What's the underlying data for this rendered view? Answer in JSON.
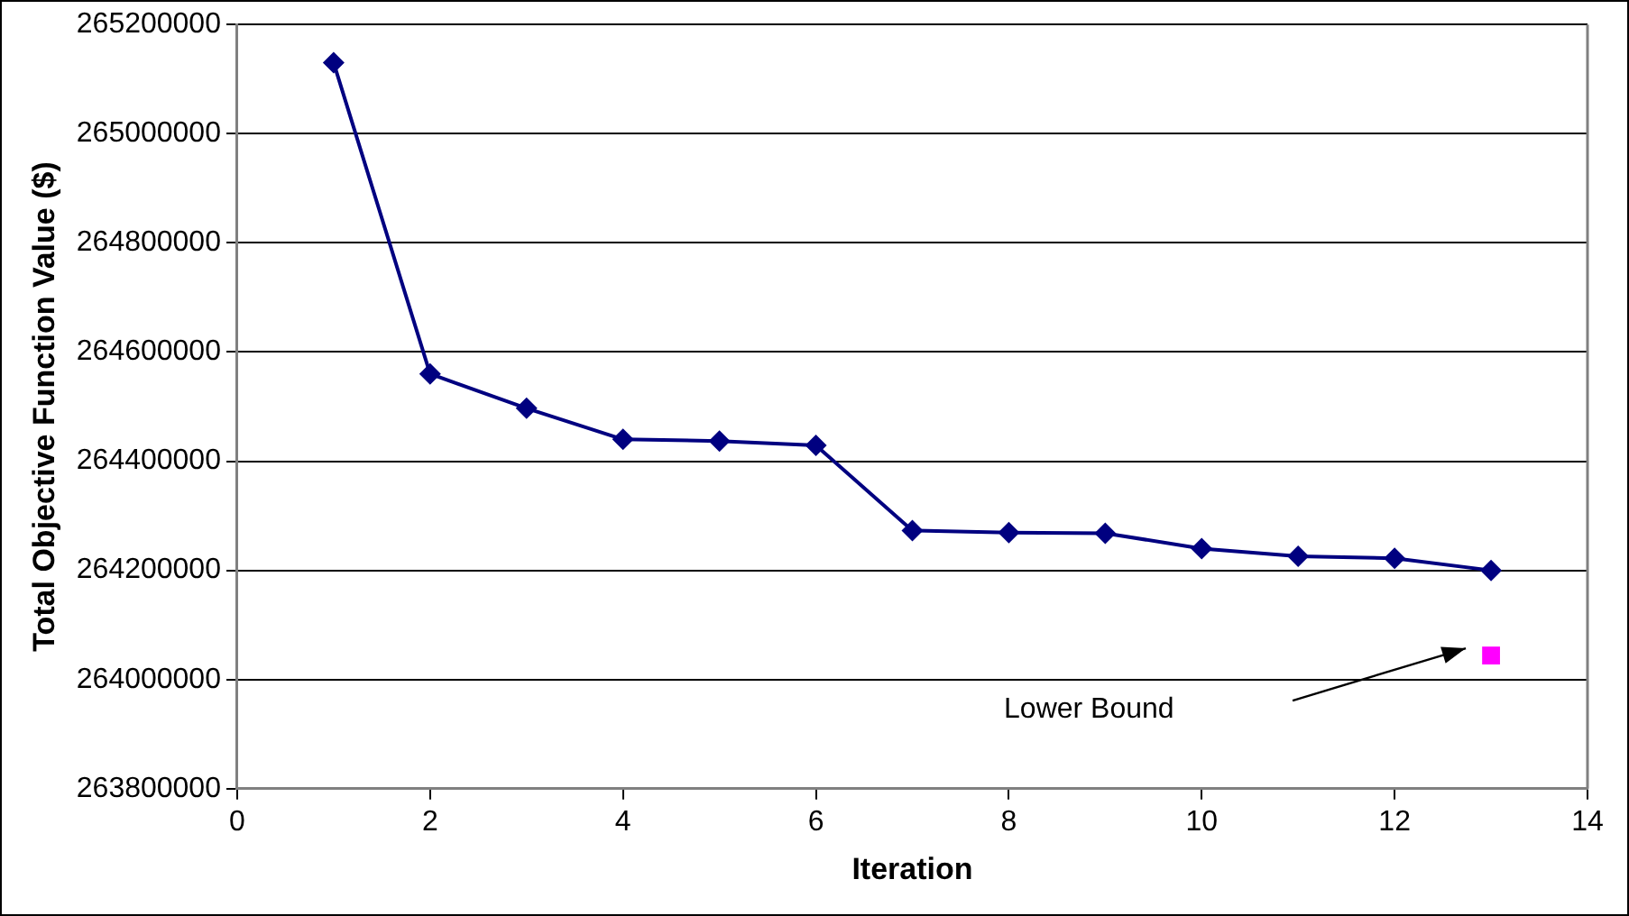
{
  "chart_data": {
    "type": "line",
    "xlabel": "Iteration",
    "ylabel": "Total Objective Function Value ($)",
    "series": [
      {
        "color": "#000080",
        "marker": "diamond",
        "x": [
          1,
          2,
          3,
          4,
          5,
          6,
          7,
          8,
          9,
          10,
          11,
          12,
          13
        ],
        "values": [
          265130000,
          264560000,
          264497000,
          264440000,
          264437000,
          264429000,
          264273000,
          264269000,
          264268000,
          264240000,
          264226000,
          264222000,
          264200000
        ]
      },
      {
        "type": "scatter",
        "color": "#ff00ff",
        "marker": "square",
        "x": [
          13
        ],
        "values": [
          264044000
        ]
      }
    ],
    "xlim": [
      0,
      14
    ],
    "xticks": [
      0,
      2,
      4,
      6,
      8,
      10,
      12,
      14
    ],
    "ylim": [
      263800000,
      265200000
    ],
    "yticks": [
      263800000,
      264000000,
      264200000,
      264400000,
      264600000,
      264800000,
      265000000,
      265200000
    ],
    "grid": "y",
    "legend": false,
    "annotations": [
      "Lower Bound"
    ]
  }
}
